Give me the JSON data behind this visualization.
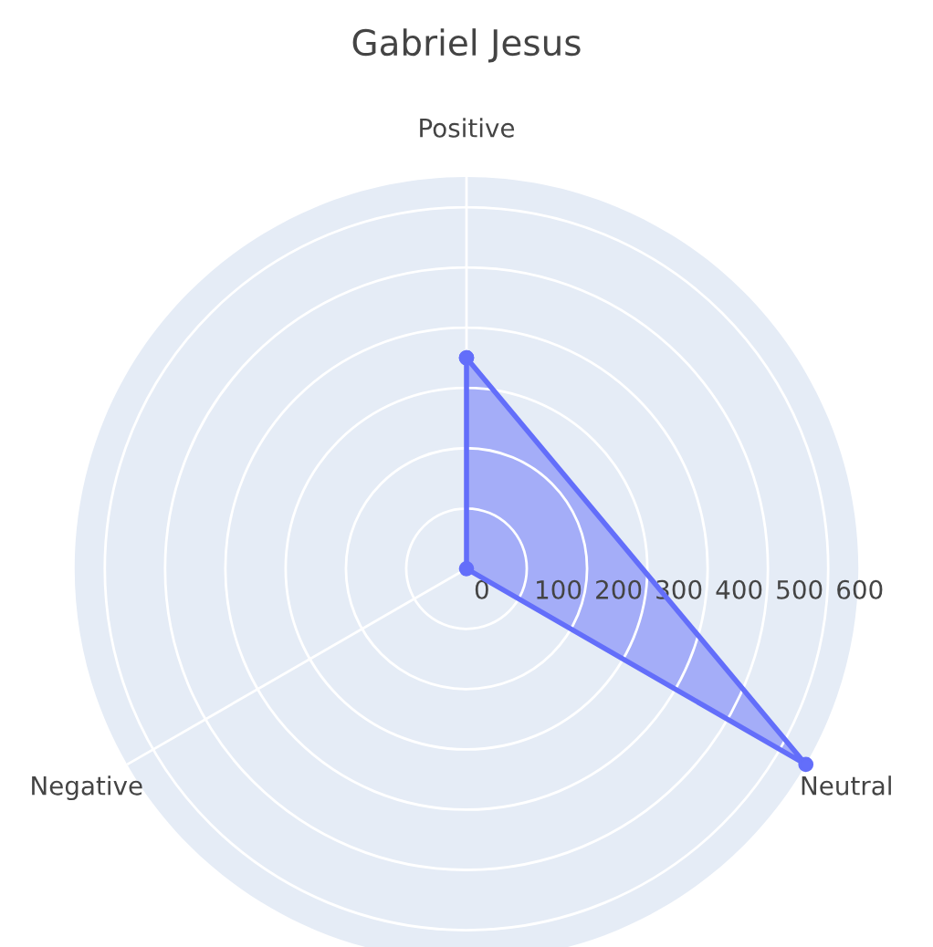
{
  "chart_data": {
    "type": "radar",
    "title": "Gabriel Jesus",
    "categories": [
      "Positive",
      "Neutral",
      "Negative"
    ],
    "series": [
      {
        "color": "#636efa",
        "values": [
          350,
          650,
          0
        ]
      }
    ],
    "ylim": [
      0,
      650
    ],
    "yticks": [
      0,
      100,
      200,
      300,
      400,
      500,
      600
    ],
    "marker": "circle",
    "grid": true
  }
}
